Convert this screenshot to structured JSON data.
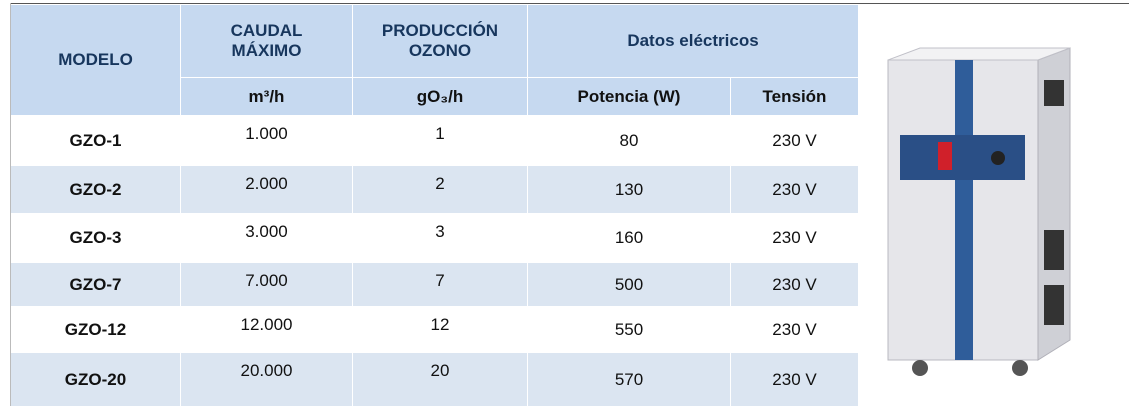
{
  "table": {
    "header": {
      "modelo": "MODELO",
      "caudal": [
        "CAUDAL",
        "MÁXIMO"
      ],
      "produccion": [
        "PRODUCCIÓN",
        "OZONO"
      ],
      "datos": "Datos eléctricos"
    },
    "units": [
      "m³/h",
      "gO₃/h",
      "Potencia (W)",
      "Tensión"
    ],
    "rows": [
      [
        "GZO-1",
        "1.000",
        "1",
        "80",
        "230 V"
      ],
      [
        "GZO-2",
        "2.000",
        "2",
        "130",
        "230 V"
      ],
      [
        "GZO-3",
        "3.000",
        "3",
        "160",
        "230 V"
      ],
      [
        "GZO-7",
        "7.000",
        "7",
        "500",
        "230 V"
      ],
      [
        "GZO-12",
        "12.000",
        "12",
        "550",
        "230 V"
      ],
      [
        "GZO-20",
        "20.000",
        "20",
        "570",
        "230 V"
      ]
    ]
  }
}
